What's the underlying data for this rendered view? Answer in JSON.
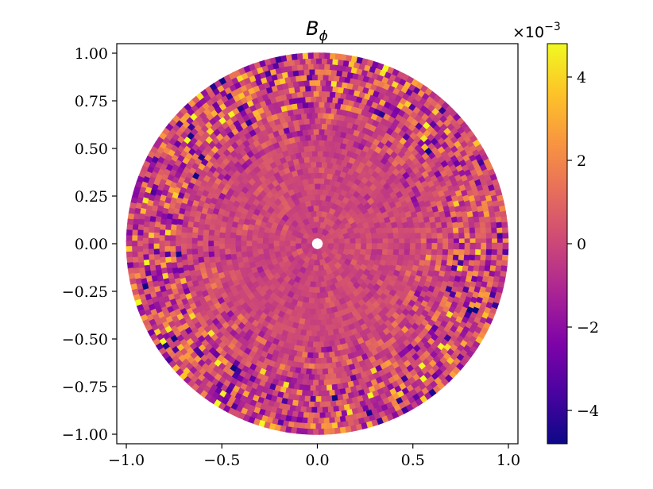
{
  "chart_data": {
    "type": "heatmap",
    "title": "B",
    "title_subscript": "ϕ",
    "plot_shape": "disk (polar grid rendered in Cartesian axes)",
    "colormap": "plasma",
    "x_ticks": [
      "−1.0",
      "−0.5",
      "0.0",
      "0.5",
      "1.0"
    ],
    "x_tick_values": [
      -1.0,
      -0.5,
      0.0,
      0.5,
      1.0
    ],
    "y_ticks": [
      "1.00",
      "0.75",
      "0.50",
      "0.25",
      "0.00",
      "−0.25",
      "−0.50",
      "−0.75",
      "−1.00"
    ],
    "y_tick_values": [
      1.0,
      0.75,
      0.5,
      0.25,
      0.0,
      -0.25,
      -0.5,
      -0.75,
      -1.0
    ],
    "xlim": [
      -1.05,
      1.05
    ],
    "ylim": [
      -1.05,
      1.05
    ],
    "colorbar": {
      "ticks": [
        "4",
        "2",
        "0",
        "−2",
        "−4"
      ],
      "tick_values": [
        4,
        2,
        0,
        -2,
        -4
      ],
      "range": [
        -4.8,
        4.8
      ],
      "multiplier": "×10",
      "multiplier_exponent": "−3"
    },
    "field_description": {
      "radial_rings": 34,
      "inner_hole_radius": 0.03,
      "high_variance_band_radius": [
        0.75,
        0.98
      ],
      "approx_value_range": [
        -4.7,
        4.8
      ],
      "units_scale": "1e-3"
    },
    "grid": false
  }
}
